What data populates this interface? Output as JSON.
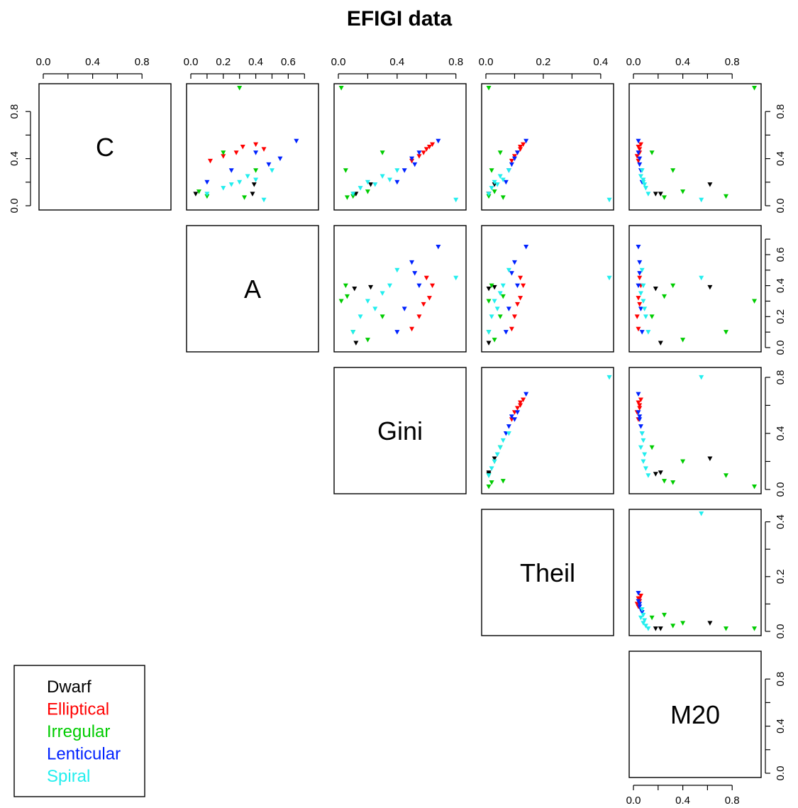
{
  "chart_data": {
    "type": "scatter",
    "title": "EFIGI data",
    "variables": [
      "C",
      "A",
      "Gini",
      "Theil",
      "M20"
    ],
    "ranges": {
      "C": [
        0,
        1
      ],
      "A": [
        0,
        0.76
      ],
      "Gini": [
        0,
        0.84
      ],
      "Theil": [
        0,
        0.43
      ],
      "M20": [
        0,
        1
      ]
    },
    "ticks": {
      "C": {
        "values": [
          0,
          0.4,
          0.8
        ],
        "labels": [
          "0.0",
          "0.4",
          "0.8"
        ],
        "minor": [
          0.2,
          0.6
        ]
      },
      "A": {
        "values": [
          0,
          0.2,
          0.4,
          0.6
        ],
        "labels": [
          "0.0",
          "0.2",
          "0.4",
          "0.6"
        ],
        "minor": [
          0.1,
          0.3,
          0.5,
          0.7
        ]
      },
      "Gini": {
        "values": [
          0,
          0.4,
          0.8
        ],
        "labels": [
          "0.0",
          "0.4",
          "0.8"
        ],
        "minor": [
          0.2,
          0.6
        ]
      },
      "Theil": {
        "values": [
          0,
          0.2,
          0.4
        ],
        "labels": [
          "0.0",
          "0.2",
          "0.4"
        ],
        "minor": [
          0.1,
          0.3
        ]
      },
      "M20": {
        "values": [
          0,
          0.4,
          0.8
        ],
        "labels": [
          "0.0",
          "0.4",
          "0.8"
        ],
        "minor": [
          0.2,
          0.6
        ]
      }
    },
    "series": [
      {
        "name": "Dwarf",
        "color": "#000000",
        "points": [
          {
            "C": 0.18,
            "A": 0.39,
            "Gini": 0.22,
            "Theil": 0.03,
            "M20": 0.62
          },
          {
            "C": 0.1,
            "A": 0.03,
            "Gini": 0.12,
            "Theil": 0.01,
            "M20": 0.22
          },
          {
            "C": 0.1,
            "A": 0.38,
            "Gini": 0.11,
            "Theil": 0.01,
            "M20": 0.18
          }
        ]
      },
      {
        "name": "Elliptical",
        "color": "#ff0000",
        "points": [
          {
            "C": 0.5,
            "A": 0.32,
            "Gini": 0.62,
            "Theil": 0.12,
            "M20": 0.04
          },
          {
            "C": 0.45,
            "A": 0.28,
            "Gini": 0.58,
            "Theil": 0.11,
            "M20": 0.05
          },
          {
            "C": 0.42,
            "A": 0.2,
            "Gini": 0.55,
            "Theil": 0.1,
            "M20": 0.03
          },
          {
            "C": 0.52,
            "A": 0.4,
            "Gini": 0.64,
            "Theil": 0.13,
            "M20": 0.06
          },
          {
            "C": 0.38,
            "A": 0.12,
            "Gini": 0.5,
            "Theil": 0.09,
            "M20": 0.04
          },
          {
            "C": 0.48,
            "A": 0.45,
            "Gini": 0.6,
            "Theil": 0.12,
            "M20": 0.05
          }
        ]
      },
      {
        "name": "Irregular",
        "color": "#00cc00",
        "points": [
          {
            "C": 1.0,
            "A": 0.3,
            "Gini": 0.02,
            "Theil": 0.01,
            "M20": 0.98
          },
          {
            "C": 0.08,
            "A": 0.1,
            "Gini": 0.1,
            "Theil": 0.01,
            "M20": 0.75
          },
          {
            "C": 0.3,
            "A": 0.4,
            "Gini": 0.05,
            "Theil": 0.02,
            "M20": 0.32
          },
          {
            "C": 0.45,
            "A": 0.2,
            "Gini": 0.3,
            "Theil": 0.05,
            "M20": 0.15
          },
          {
            "C": 0.12,
            "A": 0.05,
            "Gini": 0.2,
            "Theil": 0.03,
            "M20": 0.4
          },
          {
            "C": 0.07,
            "A": 0.33,
            "Gini": 0.06,
            "Theil": 0.06,
            "M20": 0.25
          }
        ]
      },
      {
        "name": "Lenticular",
        "color": "#0022ff",
        "points": [
          {
            "C": 0.45,
            "A": 0.4,
            "Gini": 0.55,
            "Theil": 0.11,
            "M20": 0.04
          },
          {
            "C": 0.4,
            "A": 0.55,
            "Gini": 0.5,
            "Theil": 0.1,
            "M20": 0.05
          },
          {
            "C": 0.3,
            "A": 0.25,
            "Gini": 0.45,
            "Theil": 0.08,
            "M20": 0.06
          },
          {
            "C": 0.55,
            "A": 0.65,
            "Gini": 0.68,
            "Theil": 0.14,
            "M20": 0.04
          },
          {
            "C": 0.2,
            "A": 0.1,
            "Gini": 0.4,
            "Theil": 0.07,
            "M20": 0.07
          },
          {
            "C": 0.35,
            "A": 0.48,
            "Gini": 0.52,
            "Theil": 0.09,
            "M20": 0.05
          }
        ]
      },
      {
        "name": "Spiral",
        "color": "#22eeee",
        "points": [
          {
            "C": 0.2,
            "A": 0.3,
            "Gini": 0.2,
            "Theil": 0.03,
            "M20": 0.08
          },
          {
            "C": 0.15,
            "A": 0.2,
            "Gini": 0.15,
            "Theil": 0.02,
            "M20": 0.1
          },
          {
            "C": 0.25,
            "A": 0.35,
            "Gini": 0.3,
            "Theil": 0.05,
            "M20": 0.06
          },
          {
            "C": 0.1,
            "A": 0.1,
            "Gini": 0.1,
            "Theil": 0.01,
            "M20": 0.12
          },
          {
            "C": 0.3,
            "A": 0.5,
            "Gini": 0.4,
            "Theil": 0.08,
            "M20": 0.07
          },
          {
            "C": 0.05,
            "A": 0.45,
            "Gini": 0.8,
            "Theil": 0.43,
            "M20": 0.55
          },
          {
            "C": 0.18,
            "A": 0.25,
            "Gini": 0.25,
            "Theil": 0.04,
            "M20": 0.09
          },
          {
            "C": 0.22,
            "A": 0.4,
            "Gini": 0.35,
            "Theil": 0.06,
            "M20": 0.08
          }
        ]
      }
    ],
    "legend": {
      "position": "bottom-left",
      "entries": [
        "Dwarf",
        "Elliptical",
        "Irregular",
        "Lenticular",
        "Spiral"
      ]
    },
    "grid": false
  }
}
